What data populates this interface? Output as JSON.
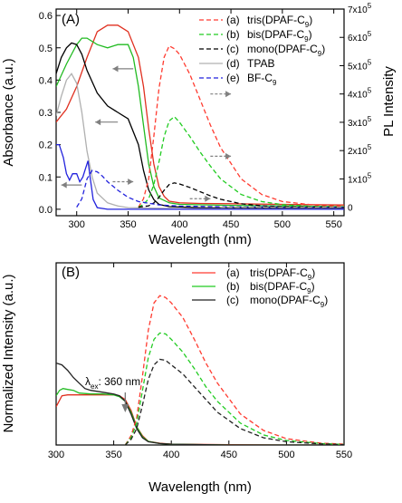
{
  "chart_data": [
    {
      "panel": "(A)",
      "type": "line",
      "xlabel": "Wavelength (nm)",
      "ylabel": "Absorbance (a.u.)",
      "y2label": "PL Intensity",
      "xlim": [
        280,
        560
      ],
      "ylim": [
        -0.02,
        0.62
      ],
      "y2lim": [
        -0.3,
        7.0
      ],
      "xticks": [
        "300",
        "350",
        "400",
        "450",
        "500",
        "550"
      ],
      "xtick_values": [
        300,
        350,
        400,
        450,
        500,
        550
      ],
      "yticks": [
        "0.0",
        "0.1",
        "0.2",
        "0.3",
        "0.4",
        "0.5",
        "0.6"
      ],
      "ytick_values": [
        0.0,
        0.1,
        0.2,
        0.3,
        0.4,
        0.5,
        0.6
      ],
      "y2ticks": [
        {
          "base": "0",
          "exp": ""
        },
        {
          "base": "1x10",
          "exp": "5"
        },
        {
          "base": "2x10",
          "exp": "5"
        },
        {
          "base": "3x10",
          "exp": "5"
        },
        {
          "base": "4x10",
          "exp": "5"
        },
        {
          "base": "5x10",
          "exp": "5"
        },
        {
          "base": "6x10",
          "exp": "5"
        },
        {
          "base": "7x10",
          "exp": "5"
        }
      ],
      "y2tick_values": [
        0,
        1,
        2,
        3,
        4,
        5,
        6,
        7
      ],
      "legend_placement": "top-right",
      "legend": [
        {
          "tag": "(a)",
          "pre": "tris(DPAF-C",
          "sub": "9",
          "post": ")",
          "color": "#ff3b30",
          "dash": true
        },
        {
          "tag": "(b)",
          "pre": "bis(DPAF-C",
          "sub": "9",
          "post": ")",
          "color": "#22cc22",
          "dash": true
        },
        {
          "tag": "(c)",
          "pre": "mono(DPAF-C",
          "sub": "9",
          "post": ")",
          "color": "#000000",
          "dash": true
        },
        {
          "tag": "(d)",
          "pre": "TPAB",
          "sub": "",
          "post": "",
          "color": "#b0b0b0",
          "dash": false
        },
        {
          "tag": "(e)",
          "pre": "BF-C",
          "sub": "9",
          "post": "",
          "color": "#2222dd",
          "dash": true
        }
      ],
      "series": [
        {
          "axis": "left",
          "color": "#e03020",
          "dash": false,
          "x": [
            280,
            290,
            300,
            310,
            320,
            330,
            340,
            350,
            360,
            365,
            370,
            375,
            380,
            385,
            390,
            400,
            420,
            450,
            500,
            560
          ],
          "y": [
            0.27,
            0.31,
            0.38,
            0.47,
            0.55,
            0.57,
            0.57,
            0.55,
            0.47,
            0.38,
            0.25,
            0.14,
            0.07,
            0.04,
            0.025,
            0.02,
            0.018,
            0.017,
            0.015,
            0.013
          ]
        },
        {
          "axis": "left",
          "color": "#22bb22",
          "dash": false,
          "x": [
            280,
            290,
            300,
            305,
            310,
            320,
            330,
            340,
            350,
            355,
            360,
            365,
            370,
            375,
            380,
            390,
            400,
            450,
            500,
            560
          ],
          "y": [
            0.38,
            0.45,
            0.51,
            0.53,
            0.53,
            0.51,
            0.5,
            0.51,
            0.51,
            0.47,
            0.38,
            0.26,
            0.14,
            0.07,
            0.035,
            0.02,
            0.015,
            0.012,
            0.01,
            0.008
          ]
        },
        {
          "axis": "left",
          "color": "#000000",
          "dash": false,
          "x": [
            280,
            285,
            290,
            295,
            300,
            305,
            310,
            320,
            330,
            340,
            350,
            360,
            365,
            370,
            375,
            380,
            390,
            420,
            500,
            560
          ],
          "y": [
            0.42,
            0.47,
            0.5,
            0.515,
            0.51,
            0.48,
            0.43,
            0.36,
            0.32,
            0.3,
            0.28,
            0.2,
            0.12,
            0.06,
            0.03,
            0.015,
            0.008,
            0.005,
            0.003,
            0.002
          ]
        },
        {
          "axis": "left",
          "color": "#b0b0b0",
          "dash": false,
          "x": [
            280,
            285,
            290,
            295,
            300,
            305,
            310,
            315,
            320,
            330,
            340,
            350,
            400,
            560
          ],
          "y": [
            0.29,
            0.35,
            0.4,
            0.42,
            0.39,
            0.3,
            0.18,
            0.1,
            0.05,
            0.02,
            0.01,
            0.005,
            0.002,
            0.0
          ]
        },
        {
          "axis": "left",
          "color": "#2222dd",
          "dash": false,
          "x": [
            280,
            283,
            287,
            290,
            293,
            296,
            300,
            303,
            306,
            309,
            311,
            313,
            316,
            320,
            330,
            350,
            400,
            560
          ],
          "y": [
            0.2,
            0.2,
            0.16,
            0.11,
            0.09,
            0.11,
            0.11,
            0.085,
            0.1,
            0.13,
            0.15,
            0.1,
            0.03,
            0.005,
            0.0,
            0.0,
            0.0,
            0.0
          ]
        },
        {
          "axis": "right",
          "color": "#ff3b30",
          "dash": true,
          "x": [
            360,
            365,
            370,
            375,
            380,
            385,
            390,
            395,
            400,
            410,
            420,
            430,
            440,
            460,
            480,
            500,
            530,
            560
          ],
          "y": [
            0.0,
            0.3,
            1.0,
            2.5,
            4.2,
            5.3,
            5.7,
            5.6,
            5.4,
            4.7,
            3.8,
            2.9,
            2.1,
            1.0,
            0.45,
            0.2,
            0.08,
            0.03
          ]
        },
        {
          "axis": "right",
          "color": "#22cc22",
          "dash": true,
          "x": [
            360,
            365,
            370,
            375,
            380,
            385,
            390,
            395,
            400,
            410,
            420,
            430,
            440,
            460,
            480,
            500,
            530,
            560
          ],
          "y": [
            0.0,
            0.1,
            0.3,
            0.8,
            1.6,
            2.5,
            3.05,
            3.2,
            3.0,
            2.5,
            1.95,
            1.45,
            1.0,
            0.45,
            0.2,
            0.09,
            0.03,
            0.01
          ]
        },
        {
          "axis": "right",
          "color": "#000000",
          "dash": true,
          "x": [
            360,
            370,
            375,
            380,
            385,
            390,
            395,
            400,
            410,
            420,
            430,
            440,
            460,
            480,
            500,
            560
          ],
          "y": [
            0.0,
            0.05,
            0.15,
            0.35,
            0.6,
            0.8,
            0.86,
            0.82,
            0.7,
            0.55,
            0.4,
            0.28,
            0.12,
            0.05,
            0.02,
            0.0
          ]
        },
        {
          "axis": "right",
          "color": "#2222dd",
          "dash": true,
          "x": [
            300,
            305,
            310,
            315,
            320,
            325,
            330,
            340,
            350,
            360,
            380,
            400,
            430,
            460,
            500,
            560
          ],
          "y": [
            0.0,
            0.3,
            1.0,
            1.3,
            1.25,
            1.1,
            0.9,
            0.6,
            0.35,
            0.2,
            0.08,
            0.04,
            0.02,
            0.01,
            0.0,
            0.0
          ]
        },
        {
          "axis": "right",
          "color": "#b0b0b0",
          "dash": true,
          "x": [
            440,
            500,
            560
          ],
          "y": [
            0.0,
            0.0,
            0.0
          ]
        }
      ],
      "arrows": [
        {
          "x1": 355,
          "y1": 0.435,
          "x2": 335,
          "y2": 0.435,
          "dir": "left",
          "axis": "left"
        },
        {
          "x1": 340,
          "y1": 0.27,
          "x2": 318,
          "y2": 0.27,
          "dir": "left",
          "axis": "left"
        },
        {
          "x1": 305,
          "y1": 0.075,
          "x2": 285,
          "y2": 0.075,
          "dir": "left",
          "axis": "left"
        },
        {
          "x1": 430,
          "y1": 4.0,
          "x2": 450,
          "y2": 4.0,
          "dir": "right",
          "axis": "right"
        },
        {
          "x1": 430,
          "y1": 1.8,
          "x2": 450,
          "y2": 1.8,
          "dir": "right",
          "axis": "right"
        },
        {
          "x1": 410,
          "y1": 0.3,
          "x2": 430,
          "y2": 0.3,
          "dir": "right",
          "axis": "right"
        },
        {
          "x1": 335,
          "y1": 0.9,
          "x2": 355,
          "y2": 0.9,
          "dir": "right",
          "axis": "right"
        }
      ]
    },
    {
      "panel": "(B)",
      "type": "line",
      "xlabel": "Wavelength (nm)",
      "ylabel": "Normalized Intensity (a.u.)",
      "xlim": [
        300,
        550
      ],
      "ylim": [
        0,
        1.0
      ],
      "xticks": [
        "300",
        "350",
        "400",
        "450",
        "500",
        "550"
      ],
      "xtick_values": [
        300,
        350,
        400,
        450,
        500,
        550
      ],
      "legend_placement": "top-right",
      "legend": [
        {
          "tag": "(a)",
          "pre": "tris(DPAF-C",
          "sub": "9",
          "post": ")",
          "color": "#ff3b30"
        },
        {
          "tag": "(b)",
          "pre": "bis(DPAF-C",
          "sub": "9",
          "post": ")",
          "color": "#22cc22"
        },
        {
          "tag": "(c)",
          "pre": "mono(DPAF-C",
          "sub": "9",
          "post": ")",
          "color": "#222222"
        }
      ],
      "annotation": {
        "pre": "λ",
        "sub": "ex",
        "post": ": 360 nm",
        "x": 360
      },
      "series": [
        {
          "color": "#e03020",
          "dash": false,
          "x": [
            300,
            305,
            310,
            320,
            330,
            340,
            350,
            355,
            360,
            365,
            370,
            375,
            380,
            390,
            400,
            450,
            500,
            550
          ],
          "y": [
            0.21,
            0.27,
            0.275,
            0.275,
            0.275,
            0.275,
            0.275,
            0.27,
            0.25,
            0.19,
            0.1,
            0.05,
            0.02,
            0.01,
            0.005,
            0.002,
            0.0,
            0.0
          ]
        },
        {
          "color": "#22bb22",
          "dash": false,
          "x": [
            300,
            303,
            306,
            310,
            315,
            320,
            330,
            340,
            350,
            355,
            360,
            365,
            370,
            375,
            380,
            390,
            400,
            450,
            550
          ],
          "y": [
            0.27,
            0.3,
            0.31,
            0.305,
            0.3,
            0.285,
            0.28,
            0.28,
            0.275,
            0.265,
            0.24,
            0.18,
            0.1,
            0.045,
            0.02,
            0.008,
            0.004,
            0.0,
            0.0
          ]
        },
        {
          "color": "#222222",
          "dash": false,
          "x": [
            300,
            305,
            310,
            315,
            320,
            325,
            330,
            340,
            350,
            355,
            360,
            365,
            370,
            375,
            380,
            390,
            400,
            450,
            550
          ],
          "y": [
            0.45,
            0.44,
            0.41,
            0.37,
            0.34,
            0.31,
            0.3,
            0.29,
            0.28,
            0.27,
            0.24,
            0.17,
            0.09,
            0.04,
            0.018,
            0.008,
            0.004,
            0.0,
            0.0
          ]
        },
        {
          "color": "#ff3b30",
          "dash": true,
          "x": [
            360,
            365,
            370,
            375,
            380,
            385,
            390,
            395,
            400,
            410,
            420,
            430,
            440,
            460,
            480,
            500,
            530,
            550
          ],
          "y": [
            0.0,
            0.05,
            0.15,
            0.38,
            0.63,
            0.78,
            0.82,
            0.81,
            0.78,
            0.7,
            0.58,
            0.45,
            0.34,
            0.17,
            0.08,
            0.035,
            0.01,
            0.005
          ]
        },
        {
          "color": "#22cc22",
          "dash": true,
          "x": [
            360,
            365,
            370,
            375,
            380,
            385,
            390,
            395,
            400,
            410,
            420,
            430,
            440,
            460,
            480,
            500,
            530,
            550
          ],
          "y": [
            0.0,
            0.04,
            0.12,
            0.3,
            0.48,
            0.58,
            0.615,
            0.61,
            0.58,
            0.51,
            0.42,
            0.32,
            0.24,
            0.12,
            0.055,
            0.025,
            0.008,
            0.003
          ]
        },
        {
          "color": "#222222",
          "dash": true,
          "x": [
            360,
            365,
            370,
            375,
            380,
            385,
            390,
            395,
            400,
            410,
            420,
            430,
            440,
            460,
            480,
            500,
            530,
            550
          ],
          "y": [
            0.0,
            0.03,
            0.09,
            0.22,
            0.36,
            0.44,
            0.47,
            0.465,
            0.44,
            0.39,
            0.32,
            0.25,
            0.18,
            0.09,
            0.04,
            0.018,
            0.006,
            0.002
          ]
        }
      ]
    }
  ]
}
